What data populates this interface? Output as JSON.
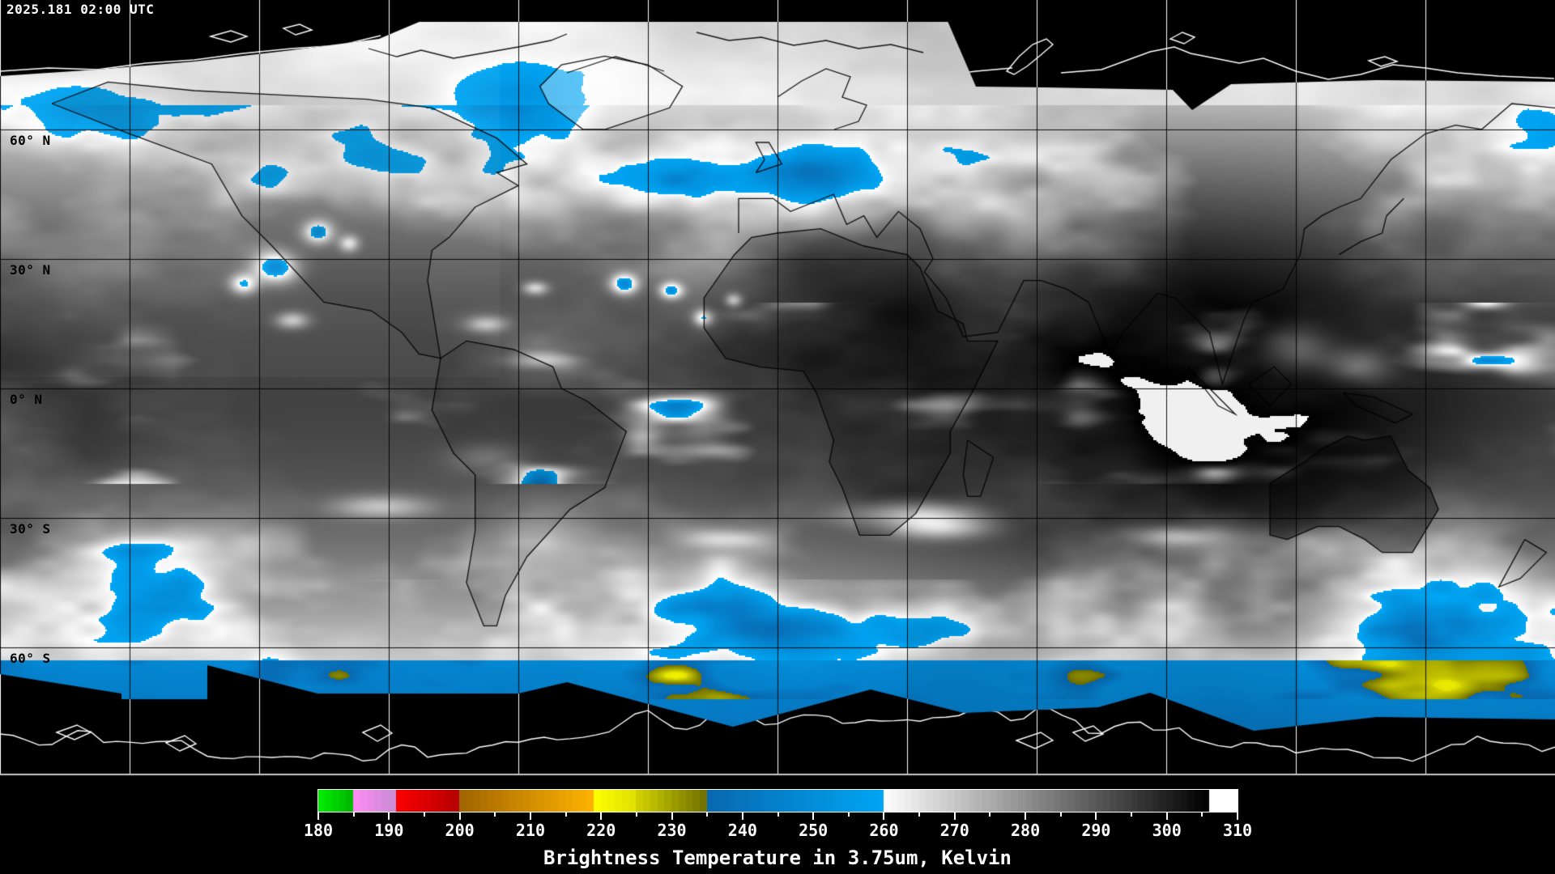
{
  "header": {
    "timestamp": "2025.181 02:00 UTC"
  },
  "map": {
    "latitude_labels": [
      {
        "text": "60° N",
        "lat": 60
      },
      {
        "text": "30° N",
        "lat": 30
      },
      {
        "text": "0° N",
        "lat": 0
      },
      {
        "text": "30° S",
        "lat": -30
      },
      {
        "text": "60° S",
        "lat": -60
      }
    ],
    "grid": {
      "lon_step_deg": 30,
      "lat_step_deg": 30
    }
  },
  "colorbar": {
    "caption": "Brightness Temperature in 3.75um, Kelvin",
    "unit": "Kelvin",
    "min": 180,
    "max": 310,
    "tick_step": 10,
    "minor_tick_step": 5,
    "ticks": [
      180,
      190,
      200,
      210,
      220,
      230,
      240,
      250,
      260,
      270,
      280,
      290,
      300,
      310
    ],
    "segments": [
      {
        "name": "green",
        "from": 180,
        "to": 185,
        "color_start": "#00f000",
        "color_end": "#00b400"
      },
      {
        "name": "violet",
        "from": 185,
        "to": 191,
        "color_start": "#ff8cf4",
        "color_end": "#c88cd4"
      },
      {
        "name": "red",
        "from": 191,
        "to": 200,
        "color_start": "#fc0000",
        "color_end": "#b40000"
      },
      {
        "name": "orange",
        "from": 200,
        "to": 219,
        "color_start": "#a06400",
        "color_end": "#ffb400"
      },
      {
        "name": "yellow",
        "from": 219,
        "to": 225,
        "color_start": "#ffff00",
        "color_end": "#e0e000"
      },
      {
        "name": "olive",
        "from": 225,
        "to": 235,
        "color_start": "#d4d400",
        "color_end": "#6e6e00"
      },
      {
        "name": "blue",
        "from": 235,
        "to": 260,
        "color_start": "#0868b0",
        "color_end": "#00a6f4"
      },
      {
        "name": "grayscale",
        "from": 260,
        "to": 306,
        "color_start": "#ffffff",
        "color_end": "#000000"
      },
      {
        "name": "white-cap",
        "from": 306,
        "to": 310,
        "color_start": "#ffffff",
        "color_end": "#ffffff"
      }
    ]
  }
}
